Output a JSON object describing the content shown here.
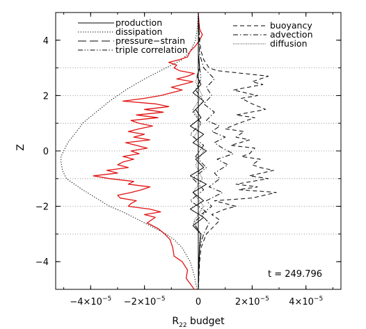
{
  "chart_data": {
    "type": "line",
    "xlabel_main": "R",
    "xlabel_sub": "22",
    "xlabel_rest": " budget",
    "ylabel": "Z",
    "xlim": [
      -5.3e-05,
      5.3e-05
    ],
    "ylim": [
      -5,
      5
    ],
    "x_ticks": [
      {
        "value": -4e-05,
        "mantissa": "−4×10",
        "exp": "−5"
      },
      {
        "value": -2e-05,
        "mantissa": "−2×10",
        "exp": "−5"
      },
      {
        "value": 0,
        "mantissa": "0",
        "exp": ""
      },
      {
        "value": 2e-05,
        "mantissa": "2×10",
        "exp": "−5"
      },
      {
        "value": 4e-05,
        "mantissa": "4×10",
        "exp": "−5"
      }
    ],
    "y_ticks": [
      -4,
      -2,
      0,
      2,
      4
    ],
    "horizontal_reference_lines": [
      -3,
      -2,
      -1,
      0,
      1,
      2,
      3
    ],
    "annotation": "t = 249.796",
    "legend_left": [
      {
        "label": "production",
        "style": "solid"
      },
      {
        "label": "dissipation",
        "style": "dotted"
      },
      {
        "label": "pressure−strain",
        "style": "longdash"
      },
      {
        "label": "triple correlation",
        "style": "dashdotdot"
      }
    ],
    "legend_right": [
      {
        "label": "buoyancy",
        "style": "dash"
      },
      {
        "label": "advection",
        "style": "dashdot"
      },
      {
        "label": "diffusion",
        "style": "finedot"
      }
    ],
    "series": [
      {
        "name": "dissipation",
        "style": "dotted",
        "color": "#000000",
        "z": [
          -5,
          -4.5,
          -4,
          -3.5,
          -3.2,
          -3,
          -2.8,
          -2.5,
          -2.2,
          -2,
          -1.7,
          -1.4,
          -1.2,
          -1,
          -0.7,
          -0.4,
          -0.2,
          0,
          0.3,
          0.6,
          1,
          1.4,
          1.8,
          2.2,
          2.6,
          3,
          3.3,
          3.6,
          4,
          4.5,
          5
        ],
        "x": [
          -5e-07,
          -1.5e-06,
          -3e-06,
          -6e-06,
          -9e-06,
          -1.2e-05,
          -1.6e-05,
          -2.2e-05,
          -2.8e-05,
          -3.3e-05,
          -3.8e-05,
          -4.3e-05,
          -4.6e-05,
          -4.9e-05,
          -5.05e-05,
          -5.1e-05,
          -5.1e-05,
          -5e-05,
          -4.85e-05,
          -4.6e-05,
          -4.3e-05,
          -3.8e-05,
          -3.3e-05,
          -2.7e-05,
          -2e-05,
          -1.2e-05,
          -6e-06,
          -3e-06,
          -1e-06,
          -3e-07,
          0
        ]
      },
      {
        "name": "pressure-strain",
        "style": "red-solid",
        "color": "#e01010",
        "z": [
          -5,
          -4.8,
          -4.6,
          -4.3,
          -4.0,
          -3.8,
          -3.5,
          -3.2,
          -3.0,
          -2.8,
          -2.6,
          -2.4,
          -2.3,
          -2.2,
          -2.1,
          -2.0,
          -1.9,
          -1.8,
          -1.7,
          -1.6,
          -1.5,
          -1.4,
          -1.3,
          -1.2,
          -1.1,
          -1.0,
          -0.9,
          -0.8,
          -0.7,
          -0.6,
          -0.5,
          -0.4,
          -0.3,
          -0.2,
          -0.1,
          0.0,
          0.1,
          0.2,
          0.3,
          0.4,
          0.5,
          0.6,
          0.7,
          0.8,
          0.9,
          1.0,
          1.1,
          1.2,
          1.3,
          1.4,
          1.5,
          1.6,
          1.7,
          1.8,
          1.9,
          2.0,
          2.1,
          2.2,
          2.3,
          2.4,
          2.5,
          2.6,
          2.7,
          2.8,
          2.9,
          3.0,
          3.1,
          3.2,
          3.3,
          3.4,
          3.6,
          3.8,
          4.0,
          4.2,
          4.4,
          4.7,
          5.0
        ],
        "x": [
          -1.5e-06,
          -3e-06,
          -4.5e-06,
          -4e-06,
          -6e-06,
          -9e-06,
          -9.5e-06,
          -1.05e-05,
          -1.25e-05,
          -1.5e-05,
          -1.9e-05,
          -1.6e-05,
          -2e-05,
          -1.4e-05,
          -1.8e-05,
          -2.6e-05,
          -2.5e-05,
          -2.3e-05,
          -2.9e-05,
          -3e-05,
          -2.5e-05,
          -2.1e-05,
          -1.8e-05,
          -2.6e-05,
          -2.4e-05,
          -3.3e-05,
          -3.9e-05,
          -3e-05,
          -3.4e-05,
          -2.6e-05,
          -3e-05,
          -2.8e-05,
          -2.4e-05,
          -2.8e-05,
          -2.2e-05,
          -2.5e-05,
          -1.9e-05,
          -2.3e-05,
          -2.7e-05,
          -1.8e-05,
          -2.4e-05,
          -2e-05,
          -2.6e-05,
          -2.2e-05,
          -1.7e-05,
          -2.2e-05,
          -2.5e-05,
          -1.5e-05,
          -2.3e-05,
          -1.3e-05,
          -2e-05,
          -1.1e-05,
          -1.6e-05,
          -2.8e-05,
          -2e-05,
          -1.4e-05,
          -1e-05,
          -6e-06,
          -1e-05,
          -6e-06,
          -2e-06,
          -8e-06,
          -4e-06,
          -1.5e-06,
          -7e-06,
          -9e-06,
          -8e-06,
          -1.1e-05,
          -7e-06,
          -4e-06,
          -3e-06,
          -1e-06,
          5e-07,
          1.5e-06,
          5e-07,
          2e-07,
          0
        ]
      },
      {
        "name": "buoyancy",
        "style": "dash",
        "color": "#000000",
        "z": [
          -5,
          -4.0,
          -3.5,
          -3.0,
          -2.7,
          -2.5,
          -2.3,
          -2.1,
          -2.0,
          -1.8,
          -1.7,
          -1.5,
          -1.4,
          -1.3,
          -1.2,
          -1.0,
          -0.9,
          -0.7,
          -0.6,
          -0.5,
          -0.3,
          -0.2,
          -0.1,
          0.1,
          0.2,
          0.4,
          0.5,
          0.7,
          0.8,
          1.0,
          1.2,
          1.3,
          1.5,
          1.7,
          1.9,
          2.0,
          2.2,
          2.4,
          2.5,
          2.7,
          2.9,
          3.0,
          3.3,
          3.6,
          4.0,
          5.0
        ],
        "x": [
          0,
          5e-07,
          1e-06,
          3e-06,
          6e-06,
          8e-06,
          5e-06,
          1e-05,
          1.4e-05,
          6e-06,
          2e-05,
          2.9e-05,
          1.5e-05,
          2.2e-05,
          1.4e-05,
          2.6e-05,
          1.9e-05,
          2.8e-05,
          2.3e-05,
          2e-05,
          2.3e-05,
          1.6e-05,
          1.9e-05,
          2.1e-05,
          1.2e-05,
          1.9e-05,
          1.4e-05,
          1.7e-05,
          1e-05,
          1.5e-05,
          2.1e-05,
          1.4e-05,
          2.5e-05,
          2e-05,
          1.6e-05,
          2.2e-05,
          1.3e-05,
          2.4e-05,
          2e-05,
          2.6e-05,
          7e-06,
          4e-06,
          2e-06,
          1e-06,
          5e-07,
          0
        ]
      },
      {
        "name": "advection",
        "style": "dashdot",
        "color": "#000000",
        "z": [
          -5,
          -3.5,
          -3.0,
          -2.6,
          -2.3,
          -2.0,
          -1.8,
          -1.5,
          -1.3,
          -1.0,
          -0.8,
          -0.5,
          -0.3,
          -0.1,
          0.1,
          0.3,
          0.5,
          0.7,
          0.9,
          1.1,
          1.4,
          1.7,
          2.0,
          2.3,
          2.6,
          3.0,
          3.5,
          5.0
        ],
        "x": [
          0,
          5e-07,
          2e-06,
          4e-06,
          1e-06,
          5e-06,
          3e-06,
          9e-06,
          4e-06,
          8e-06,
          6e-06,
          1.1e-05,
          7e-06,
          1.3e-05,
          9e-06,
          6e-06,
          1e-05,
          5e-06,
          8e-06,
          3e-06,
          6e-06,
          2e-06,
          5e-06,
          3e-06,
          6e-06,
          2e-06,
          5e-07,
          0
        ]
      },
      {
        "name": "triple correlation",
        "style": "dashdotdot",
        "color": "#000000",
        "z": [
          -5,
          -3.5,
          -3.0,
          -2.6,
          -2.2,
          -1.8,
          -1.4,
          -1.0,
          -0.6,
          -0.2,
          0.2,
          0.6,
          1.0,
          1.4,
          1.8,
          2.2,
          2.6,
          3.0,
          3.5,
          5.0
        ],
        "x": [
          0,
          5e-07,
          1e-06,
          -2e-06,
          3e-06,
          -3e-06,
          2e-06,
          -2e-06,
          3e-06,
          -1e-06,
          2e-06,
          -3e-06,
          1e-06,
          -2e-06,
          2e-06,
          -1e-06,
          1e-06,
          5e-07,
          0,
          0
        ]
      },
      {
        "name": "production",
        "style": "solid",
        "color": "#000000",
        "z": [
          -5,
          -4.0,
          -3.5,
          -3.0,
          -2.7,
          -2.4,
          -2.1,
          -1.8,
          -1.5,
          -1.2,
          -0.9,
          -0.6,
          -0.3,
          0.0,
          0.3,
          0.6,
          0.9,
          1.2,
          1.5,
          1.8,
          2.1,
          2.4,
          2.7,
          3.0,
          3.5,
          4.0,
          5.0
        ],
        "x": [
          0,
          2e-07,
          5e-07,
          1e-06,
          -2e-06,
          2e-06,
          -3e-06,
          2e-06,
          -2e-06,
          3e-06,
          -3e-06,
          2e-06,
          -1e-06,
          3e-06,
          -2e-06,
          2e-06,
          -3e-06,
          1e-06,
          -1e-06,
          2e-06,
          -2e-06,
          1e-06,
          -5e-07,
          5e-07,
          0,
          0,
          0
        ]
      },
      {
        "name": "diffusion",
        "style": "finedot",
        "color": "#000000",
        "z": [
          -5,
          -3.0,
          -2.5,
          -2.0,
          -1.5,
          -1.0,
          -0.5,
          0.0,
          0.5,
          1.0,
          1.5,
          2.0,
          2.5,
          3.0,
          5.0
        ],
        "x": [
          0,
          5e-07,
          -1.5e-06,
          2e-06,
          -2e-06,
          1.5e-06,
          -1e-06,
          2e-06,
          -1.5e-06,
          1e-06,
          -2e-06,
          1.5e-06,
          -1e-06,
          5e-07,
          0
        ]
      }
    ]
  }
}
